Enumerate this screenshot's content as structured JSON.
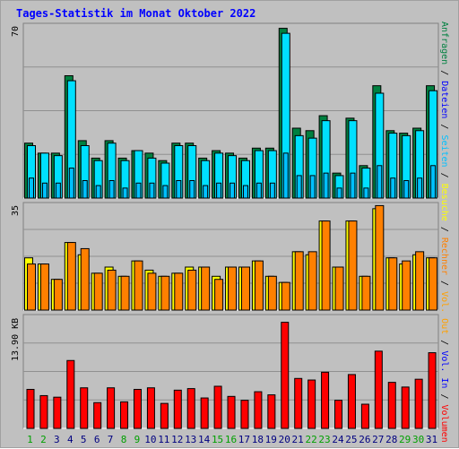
{
  "title": "Tages-Statistik im Monat Oktober 2022",
  "axis_labels": {
    "top": "70",
    "middle": "35",
    "bottom": "13.90 KB"
  },
  "legend": [
    {
      "text": "Anfragen",
      "color": "#008040"
    },
    {
      "text": " / ",
      "color": "#000000"
    },
    {
      "text": "Dateien",
      "color": "#0000ff"
    },
    {
      "text": " / ",
      "color": "#000000"
    },
    {
      "text": "Seiten",
      "color": "#00c0ff"
    },
    {
      "text": " / ",
      "color": "#000000"
    },
    {
      "text": "Besuche",
      "color": "#ffff00"
    },
    {
      "text": " / ",
      "color": "#000000"
    },
    {
      "text": "Rechner",
      "color": "#ff8000"
    },
    {
      "text": " / ",
      "color": "#000000"
    },
    {
      "text": "Vol. Out",
      "color": "#ffa000"
    },
    {
      "text": " / ",
      "color": "#000000"
    },
    {
      "text": "Vol. In",
      "color": "#0000ff"
    },
    {
      "text": " / ",
      "color": "#000000"
    },
    {
      "text": "Volumen",
      "color": "#ff0000"
    }
  ],
  "colors": {
    "anfragen": "#008040",
    "dateien": "#00e0ff",
    "seiten": "#00c0ff",
    "besuche": "#ffff00",
    "rechner": "#ff8000",
    "volumen": "#ff0000",
    "weekday": "#000080",
    "weekend": "#00a000"
  },
  "chart_data": [
    {
      "type": "bar",
      "x": [
        "1",
        "2",
        "3",
        "4",
        "5",
        "6",
        "7",
        "8",
        "9",
        "10",
        "11",
        "12",
        "13",
        "14",
        "15",
        "16",
        "17",
        "18",
        "19",
        "20",
        "21",
        "22",
        "23",
        "24",
        "25",
        "26",
        "27",
        "28",
        "29",
        "30",
        "31"
      ],
      "weekend_days": [
        "1",
        "2",
        "8",
        "9",
        "15",
        "16",
        "22",
        "23",
        "29",
        "30"
      ],
      "ylim": [
        0,
        70
      ],
      "series": [
        {
          "name": "Anfragen",
          "values": [
            22,
            18,
            18,
            49,
            23,
            16,
            23,
            16,
            19,
            18,
            15,
            22,
            22,
            16,
            19,
            18,
            16,
            20,
            20,
            68,
            28,
            27,
            33,
            10,
            32,
            13,
            45,
            27,
            26,
            28,
            45
          ]
        },
        {
          "name": "Dateien",
          "values": [
            21,
            18,
            17,
            47,
            21,
            15,
            22,
            15,
            19,
            16,
            14,
            21,
            21,
            15,
            18,
            17,
            15,
            19,
            19,
            66,
            25,
            24,
            31,
            9,
            31,
            12,
            42,
            26,
            25,
            27,
            43
          ]
        },
        {
          "name": "Seiten",
          "values": [
            8,
            6,
            6,
            12,
            7,
            5,
            7,
            4,
            6,
            6,
            5,
            7,
            7,
            5,
            6,
            6,
            5,
            6,
            6,
            18,
            9,
            9,
            10,
            4,
            10,
            4,
            13,
            8,
            7,
            8,
            13
          ]
        }
      ]
    },
    {
      "type": "bar",
      "x": [
        "1",
        "2",
        "3",
        "4",
        "5",
        "6",
        "7",
        "8",
        "9",
        "10",
        "11",
        "12",
        "13",
        "14",
        "15",
        "16",
        "17",
        "18",
        "19",
        "20",
        "21",
        "22",
        "23",
        "24",
        "25",
        "26",
        "27",
        "28",
        "29",
        "30",
        "31"
      ],
      "ylim": [
        0,
        35
      ],
      "series": [
        {
          "name": "Besuche",
          "values": [
            17,
            15,
            10,
            22,
            18,
            12,
            14,
            11,
            16,
            13,
            11,
            12,
            14,
            14,
            11,
            14,
            14,
            16,
            11,
            9,
            19,
            18,
            29,
            14,
            29,
            11,
            33,
            17,
            15,
            18,
            17
          ]
        },
        {
          "name": "Rechner",
          "values": [
            15,
            15,
            10,
            22,
            20,
            12,
            13,
            11,
            16,
            12,
            11,
            12,
            13,
            14,
            10,
            14,
            14,
            16,
            11,
            9,
            19,
            19,
            29,
            14,
            29,
            11,
            34,
            17,
            16,
            19,
            17
          ]
        }
      ]
    },
    {
      "type": "bar",
      "x": [
        "1",
        "2",
        "3",
        "4",
        "5",
        "6",
        "7",
        "8",
        "9",
        "10",
        "11",
        "12",
        "13",
        "14",
        "15",
        "16",
        "17",
        "18",
        "19",
        "20",
        "21",
        "22",
        "23",
        "24",
        "25",
        "26",
        "27",
        "28",
        "29",
        "30",
        "31"
      ],
      "ylim": [
        0,
        13.9
      ],
      "ylabel": "KB",
      "series": [
        {
          "name": "Volumen",
          "values": [
            5.0,
            4.2,
            4.0,
            8.7,
            5.2,
            3.3,
            5.2,
            3.4,
            5.0,
            5.2,
            3.2,
            4.9,
            5.1,
            3.9,
            5.4,
            4.1,
            3.6,
            4.7,
            4.3,
            13.6,
            6.4,
            6.2,
            7.2,
            3.6,
            6.9,
            3.1,
            9.9,
            5.9,
            5.3,
            6.3,
            9.7
          ]
        }
      ]
    }
  ]
}
